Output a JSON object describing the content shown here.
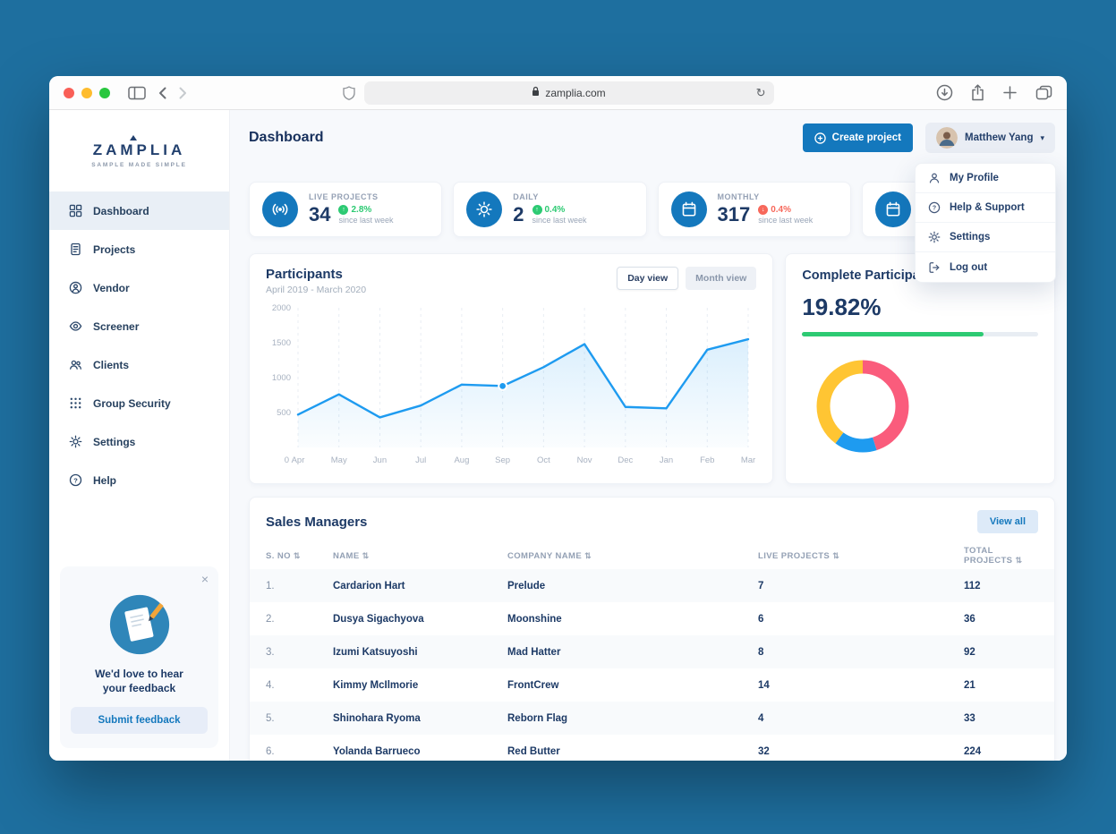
{
  "colors": {
    "accent": "#1478bd",
    "green": "#2dca73",
    "red": "#f7685b",
    "chart_blue": "#1e9bf0",
    "donut": [
      "#fa5c7c",
      "#ffc533",
      "#1e9bf0"
    ]
  },
  "browser": {
    "url": "zamplia.com",
    "traffic_lights": [
      "close",
      "minimize",
      "zoom"
    ],
    "toolbar_icons": [
      "sidebar-toggle",
      "back",
      "forward",
      "privacy-shield",
      "lock",
      "refresh",
      "downloads",
      "share",
      "new-tab",
      "tab-overview"
    ]
  },
  "sidebar": {
    "logo": "ZAMPLIA",
    "tagline": "SAMPLE MADE SIMPLE",
    "items": [
      {
        "label": "Dashboard",
        "icon": "dashboard",
        "active": true
      },
      {
        "label": "Projects",
        "icon": "projects",
        "active": false
      },
      {
        "label": "Vendor",
        "icon": "vendor",
        "active": false
      },
      {
        "label": "Screener",
        "icon": "screener",
        "active": false
      },
      {
        "label": "Clients",
        "icon": "clients",
        "active": false
      },
      {
        "label": "Group Security",
        "icon": "group-security",
        "active": false
      },
      {
        "label": "Settings",
        "icon": "settings",
        "active": false
      },
      {
        "label": "Help",
        "icon": "help",
        "active": false
      }
    ],
    "feedback": {
      "line1": "We'd love to hear",
      "line2": "your feedback",
      "button": "Submit feedback"
    }
  },
  "header": {
    "title": "Dashboard",
    "create_button": "Create project",
    "user": "Matthew Yang"
  },
  "user_menu": {
    "items": [
      {
        "label": "My Profile",
        "icon": "user"
      },
      {
        "label": "Help & Support",
        "icon": "question"
      },
      {
        "label": "Settings",
        "icon": "settings"
      },
      {
        "label": "Log out",
        "icon": "logout"
      }
    ]
  },
  "stats": [
    {
      "label": "LIVE PROJECTS",
      "value": "34",
      "change": "2.8%",
      "direction": "up",
      "caption": "since last week",
      "icon": "live"
    },
    {
      "label": "DAILY",
      "value": "2",
      "change": "0.4%",
      "direction": "up",
      "caption": "since last week",
      "icon": "sun"
    },
    {
      "label": "MONTHLY",
      "value": "317",
      "change": "0.4%",
      "direction": "down",
      "caption": "since last week",
      "icon": "calendar"
    },
    {
      "label": "",
      "value": "",
      "change": null,
      "direction": null,
      "caption": "",
      "icon": "calendar"
    }
  ],
  "participants": {
    "day_view": "Day view",
    "month_view": "Month view"
  },
  "chart_data": [
    {
      "type": "line",
      "title": "Participants",
      "subtitle": "April 2019 - March 2020",
      "x": [
        "Apr",
        "May",
        "Jun",
        "Jul",
        "Aug",
        "Sep",
        "Oct",
        "Nov",
        "Dec",
        "Jan",
        "Feb",
        "Mar"
      ],
      "values": [
        470,
        760,
        430,
        600,
        900,
        880,
        1150,
        1480,
        580,
        560,
        1400,
        1550
      ],
      "ylim": [
        0,
        2000
      ],
      "yticks": [
        500,
        1000,
        1500,
        2000
      ],
      "highlight_index": 5,
      "line_color": "#1e9bf0",
      "grid": "vertical-dashed",
      "legend": "none"
    },
    {
      "type": "pie",
      "donut": true,
      "title": "Complete Participant Rate",
      "segments": [
        {
          "name": "pink",
          "color": "#fa5c7c",
          "value": 45
        },
        {
          "name": "blue",
          "color": "#1e9bf0",
          "value": 15
        },
        {
          "name": "yellow",
          "color": "#ffc533",
          "value": 40
        }
      ]
    }
  ],
  "completion": {
    "title": "Complete Participant Rate",
    "value": "19.82%",
    "progress_pct": 77
  },
  "sales": {
    "title": "Sales Managers",
    "view_all": "View all",
    "columns": [
      "S. NO",
      "NAME",
      "COMPANY NAME",
      "LIVE PROJECTS",
      "TOTAL PROJECTS"
    ],
    "rows": [
      [
        "1.",
        "Cardarion Hart",
        "Prelude",
        "7",
        "112"
      ],
      [
        "2.",
        "Dusya Sigachyova",
        "Moonshine",
        "6",
        "36"
      ],
      [
        "3.",
        "Izumi Katsuyoshi",
        "Mad Hatter",
        "8",
        "92"
      ],
      [
        "4.",
        "Kimmy McIlmorie",
        "FrontCrew",
        "14",
        "21"
      ],
      [
        "5.",
        "Shinohara Ryoma",
        "Reborn Flag",
        "4",
        "33"
      ],
      [
        "6.",
        "Yolanda Barrueco",
        "Red Butter",
        "32",
        "224"
      ]
    ]
  }
}
